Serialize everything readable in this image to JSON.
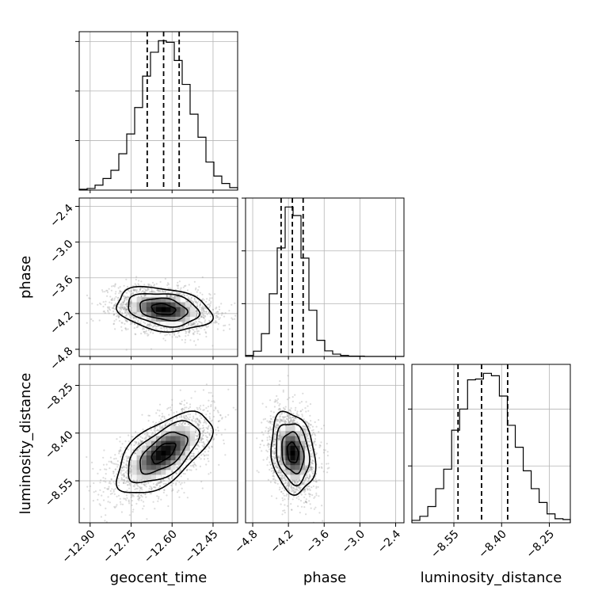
{
  "chart_data": {
    "type": "corner",
    "parameters": [
      {
        "name": "geocent_time",
        "label": "geocent_time",
        "range": [
          -12.94,
          -12.36
        ],
        "ticks": [
          -12.9,
          -12.75,
          -12.6,
          -12.45
        ],
        "tick_labels": [
          "−12.90",
          "−12.75",
          "−12.60",
          "−12.45"
        ],
        "quantiles": [
          -12.691,
          -12.631,
          -12.574
        ]
      },
      {
        "name": "phase",
        "label": "phase",
        "range": [
          -4.92,
          -2.26
        ],
        "ticks": [
          -4.8,
          -4.2,
          -3.6,
          -3.0,
          -2.4
        ],
        "tick_labels": [
          "−4.8",
          "−4.2",
          "−3.6",
          "−3.0",
          "−2.4"
        ],
        "quantiles": [
          -4.323,
          -4.134,
          -3.953
        ]
      },
      {
        "name": "luminosity_distance",
        "label": "luminosity_distance",
        "range": [
          -8.682,
          -8.184
        ],
        "ticks": [
          -8.55,
          -8.4,
          -8.25
        ],
        "tick_labels": [
          "−8.55",
          "−8.40",
          "−8.25"
        ],
        "quantiles": [
          -8.537,
          -8.463,
          -8.381
        ]
      }
    ],
    "marginals": [
      {
        "parameter": "geocent_time",
        "bin_edges": [
          -12.94,
          -12.911,
          -12.882,
          -12.853,
          -12.824,
          -12.795,
          -12.766,
          -12.737,
          -12.708,
          -12.679,
          -12.65,
          -12.621,
          -12.592,
          -12.563,
          -12.534,
          -12.505,
          -12.476,
          -12.447,
          -12.418,
          -12.389,
          -12.36
        ],
        "counts": [
          1,
          2,
          6,
          14,
          24,
          44,
          68,
          100,
          138,
          167,
          181,
          179,
          157,
          128,
          92,
          64,
          34,
          17,
          8,
          3
        ]
      },
      {
        "parameter": "phase",
        "bin_edges": [
          -4.92,
          -4.787,
          -4.654,
          -4.521,
          -4.388,
          -4.255,
          -4.122,
          -3.989,
          -3.856,
          -3.723,
          -3.59,
          -3.457,
          -3.324,
          -3.191,
          -3.058,
          -2.925,
          -2.792,
          -2.659,
          -2.526,
          -2.393,
          -2.26
        ],
        "counts": [
          3,
          16,
          69,
          190,
          329,
          453,
          427,
          298,
          140,
          49,
          17,
          7,
          3,
          1,
          1,
          0,
          0,
          0,
          0,
          0
        ]
      },
      {
        "parameter": "luminosity_distance",
        "bin_edges": [
          -8.682,
          -8.657,
          -8.632,
          -8.607,
          -8.582,
          -8.557,
          -8.532,
          -8.507,
          -8.482,
          -8.457,
          -8.432,
          -8.407,
          -8.382,
          -8.357,
          -8.332,
          -8.307,
          -8.282,
          -8.257,
          -8.232,
          -8.207,
          -8.184
        ],
        "counts": [
          3,
          8,
          20,
          42,
          66,
          114,
          140,
          176,
          177,
          184,
          181,
          156,
          120,
          93,
          64,
          42,
          25,
          11,
          5,
          4
        ]
      }
    ],
    "joint": [
      {
        "x": "geocent_time",
        "y": "phase",
        "mean": [
          -12.632,
          -4.128
        ],
        "std": [
          0.087,
          0.185
        ],
        "correlation": -0.25
      },
      {
        "x": "geocent_time",
        "y": "luminosity_distance",
        "mean": [
          -12.632,
          -8.462
        ],
        "std": [
          0.087,
          0.064
        ],
        "correlation": 0.6
      },
      {
        "x": "phase",
        "y": "luminosity_distance",
        "mean": [
          -4.128,
          -8.462
        ],
        "std": [
          0.185,
          0.064
        ],
        "correlation": -0.2
      }
    ],
    "contour_levels_sigma": [
      0.5,
      1.0,
      1.5,
      2.0
    ],
    "grid": true,
    "scatter_color": "#9a9a9a",
    "line_color": "#000000"
  }
}
